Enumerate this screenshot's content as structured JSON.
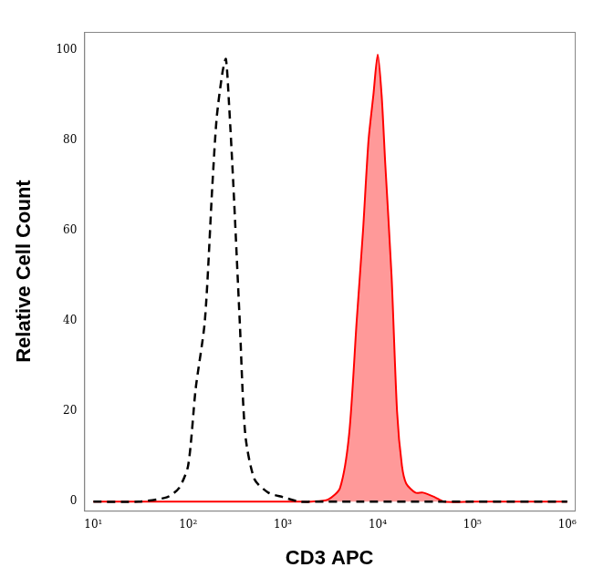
{
  "chart_data": {
    "type": "line",
    "x_label": "CD3 APC",
    "y_label": "Relative Cell Count",
    "log": "x",
    "grid": false,
    "x": [
      10,
      30,
      60,
      80,
      100,
      120,
      150,
      180,
      200,
      230,
      250,
      270,
      300,
      350,
      400,
      500,
      700,
      1000,
      1500,
      2000,
      3000,
      4000,
      5000,
      6000,
      7000,
      8000,
      9000,
      10000,
      11000,
      12000,
      14000,
      16000,
      18000,
      20000,
      25000,
      30000,
      40000,
      50000,
      100000,
      1000000
    ],
    "series": [
      {
        "color": "#000000",
        "type": "line",
        "line_style": "dashed",
        "values": [
          0,
          0,
          1,
          3,
          8,
          25,
          40,
          70,
          85,
          95,
          98,
          88,
          70,
          40,
          15,
          5,
          2,
          1,
          0,
          0,
          0,
          0,
          0,
          0,
          0,
          0,
          0,
          0,
          0,
          0,
          0,
          0,
          0,
          0,
          0,
          0,
          0,
          0,
          0,
          0
        ]
      },
      {
        "color": "#ff0000",
        "type": "area",
        "line_style": "solid",
        "values": [
          0,
          0,
          0,
          0,
          0,
          0,
          0,
          0,
          0,
          0,
          0,
          0,
          0,
          0,
          0,
          0,
          0,
          0,
          0,
          0,
          0.5,
          3,
          15,
          40,
          60,
          80,
          90,
          99,
          90,
          75,
          50,
          20,
          8,
          4,
          2,
          2,
          1,
          0,
          0,
          0
        ]
      }
    ],
    "xlim": [
      8,
      1200000
    ],
    "xticks": [
      {
        "value": 10,
        "label": "10¹"
      },
      {
        "value": 100,
        "label": "10²"
      },
      {
        "value": 1000,
        "label": "10³"
      },
      {
        "value": 10000,
        "label": "10⁴"
      },
      {
        "value": 100000,
        "label": "10⁵"
      },
      {
        "value": 1000000,
        "label": "10⁶"
      }
    ],
    "ylim": [
      -2,
      104
    ],
    "yticks": [
      0,
      20,
      40,
      60,
      80,
      100
    ]
  }
}
